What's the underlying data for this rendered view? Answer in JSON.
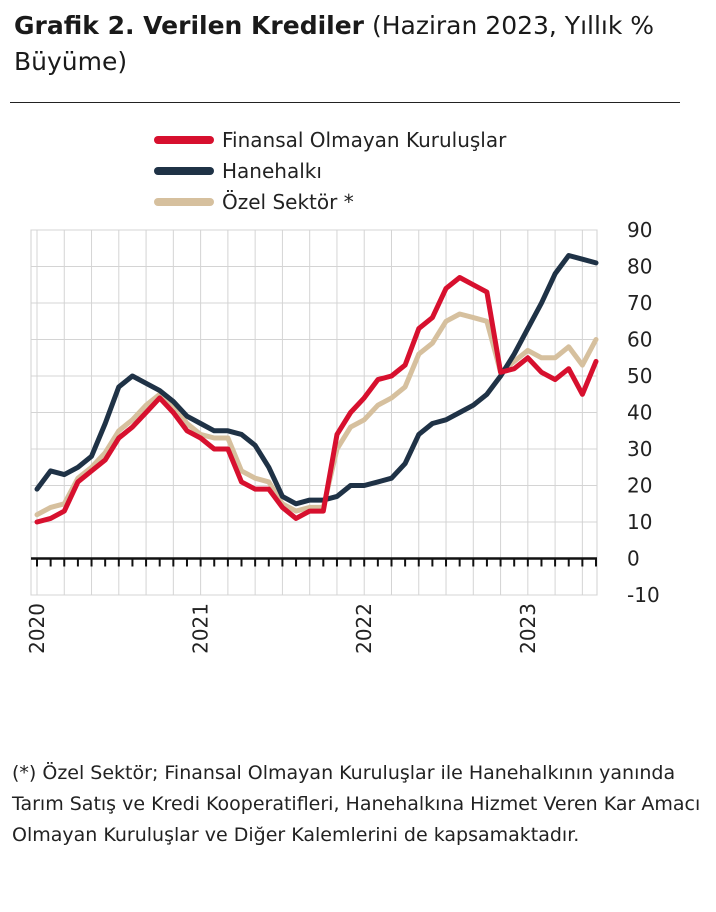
{
  "title": {
    "bold": "Grafik 2. Verilen Krediler",
    "rest": " (Haziran 2023, Yıllık % Büyüme)"
  },
  "legend": [
    {
      "label": "Finansal Olmayan Kuruluşlar",
      "color": "#d7102e"
    },
    {
      "label": "Hanehalkı",
      "color": "#1f3246"
    },
    {
      "label": "Özel Sektör *",
      "color": "#d6c09e"
    }
  ],
  "footnote": "(*) Özel Sektör; Finansal Olmayan Kuruluşlar ile Hanehalkının yanında Tarım Satış ve Kredi Kooperatifleri, Hanehalkına Hizmet Veren Kar Amacı Olmayan Kuruluşlar ve Diğer Kalemlerini de kapsamaktadır.",
  "chart_data": {
    "type": "line",
    "title": "Grafik 2. Verilen Krediler (Haziran 2023, Yıllık % Büyüme)",
    "xlabel": "",
    "ylabel": "",
    "ylim": [
      -10,
      90
    ],
    "yticks": [
      "90",
      "80",
      "70",
      "60",
      "50",
      "40",
      "30",
      "20",
      "10",
      "0",
      "-10"
    ],
    "year_labels": [
      "2020",
      "2021",
      "2022",
      "2023"
    ],
    "x": [
      "2020-01",
      "2020-02",
      "2020-03",
      "2020-04",
      "2020-05",
      "2020-06",
      "2020-07",
      "2020-08",
      "2020-09",
      "2020-10",
      "2020-11",
      "2020-12",
      "2021-01",
      "2021-02",
      "2021-03",
      "2021-04",
      "2021-05",
      "2021-06",
      "2021-07",
      "2021-08",
      "2021-09",
      "2021-10",
      "2021-11",
      "2021-12",
      "2022-01",
      "2022-02",
      "2022-03",
      "2022-04",
      "2022-05",
      "2022-06",
      "2022-07",
      "2022-08",
      "2022-09",
      "2022-10",
      "2022-11",
      "2022-12",
      "2023-01",
      "2023-02",
      "2023-03",
      "2023-04",
      "2023-05",
      "2023-06"
    ],
    "grid": true,
    "legend_position": "top",
    "series": [
      {
        "name": "Finansal Olmayan Kuruluşlar",
        "color": "#d7102e",
        "values": [
          10,
          11,
          13,
          21,
          24,
          27,
          33,
          36,
          40,
          44,
          40,
          35,
          33,
          30,
          30,
          21,
          19,
          19,
          14,
          11,
          13,
          13,
          34,
          40,
          44,
          49,
          50,
          53,
          63,
          66,
          74,
          77,
          75,
          73,
          51,
          52,
          55,
          51,
          49,
          52,
          45,
          54
        ]
      },
      {
        "name": "Hanehalkı",
        "color": "#1f3246",
        "values": [
          19,
          24,
          23,
          25,
          28,
          37,
          47,
          50,
          48,
          46,
          43,
          39,
          37,
          35,
          35,
          34,
          31,
          25,
          17,
          15,
          16,
          16,
          17,
          20,
          20,
          21,
          22,
          26,
          34,
          37,
          38,
          40,
          42,
          45,
          50,
          56,
          63,
          70,
          78,
          83,
          82,
          81
        ]
      },
      {
        "name": "Özel Sektör *",
        "color": "#d6c09e",
        "values": [
          12,
          14,
          15,
          22,
          25,
          29,
          35,
          38,
          42,
          45,
          42,
          37,
          34,
          33,
          33,
          24,
          22,
          21,
          15,
          13,
          14,
          14,
          30,
          36,
          38,
          42,
          44,
          47,
          56,
          59,
          65,
          67,
          66,
          65,
          51,
          54,
          57,
          55,
          55,
          58,
          53,
          60
        ]
      }
    ]
  }
}
